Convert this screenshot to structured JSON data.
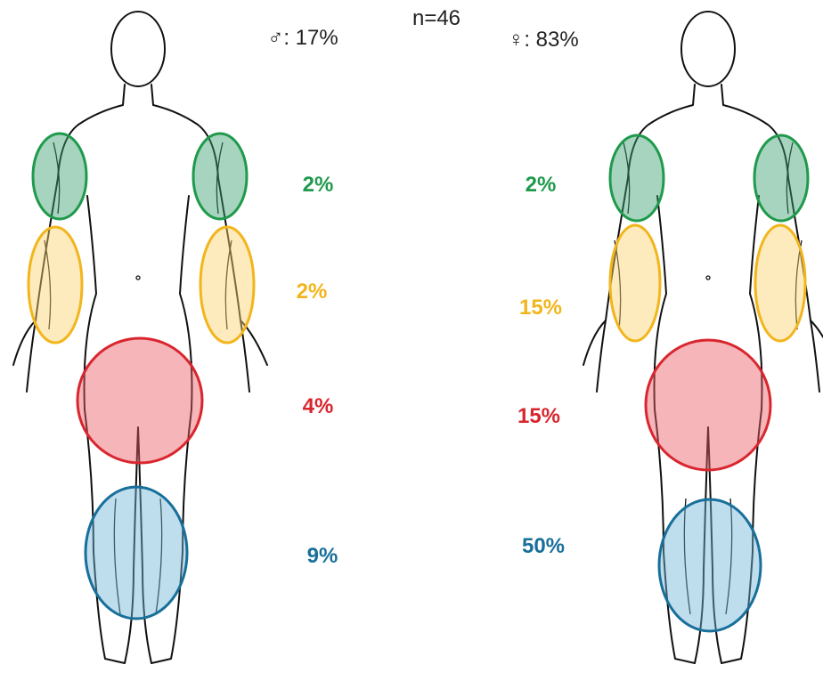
{
  "header": {
    "n": "n=46",
    "male": "♂: 17%",
    "female": "♀: 83%"
  },
  "male": {
    "labels": [
      "2%",
      "2%",
      "4%",
      "9%"
    ]
  },
  "female": {
    "labels": [
      "2%",
      "15%",
      "15%",
      "50%"
    ]
  }
}
